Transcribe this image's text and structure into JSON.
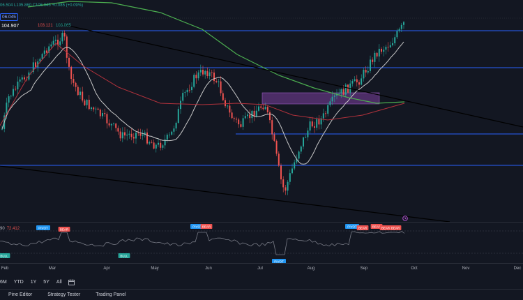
{
  "header": {
    "ohlc_text": "06.504 L105.860 C106.045 +0.085 (+0.09%)"
  },
  "price_tags": {
    "blue": "06.045",
    "white": "104.907",
    "red": "103.121",
    "green": "103.065"
  },
  "oscillator": {
    "length_label": "90",
    "value": "72.412",
    "markers": [
      {
        "text": "PIVOT",
        "color": "#2196f3"
      },
      {
        "text": "BEAR",
        "color": "#ef5350"
      },
      {
        "text": "PIVOT",
        "color": "#2196f3"
      },
      {
        "text": "BEAR",
        "color": "#ef5350"
      },
      {
        "text": "BULL",
        "color": "#26a69a"
      },
      {
        "text": "BULL",
        "color": "#26a69a"
      },
      {
        "text": "PIVOT",
        "color": "#2196f3"
      },
      {
        "text": "PIVOT",
        "color": "#2196f3"
      },
      {
        "text": "BEAR",
        "color": "#ef5350"
      },
      {
        "text": "BEAR",
        "color": "#ef5350"
      },
      {
        "text": "BEAR",
        "color": "#ef5350"
      },
      {
        "text": "BEAR",
        "color": "#ef5350"
      }
    ]
  },
  "x_axis": {
    "labels": [
      "Feb",
      "Mar",
      "Apr",
      "May",
      "Jun",
      "Jul",
      "Aug",
      "Sep",
      "Oct",
      "Nov",
      "Dec"
    ]
  },
  "timeframes": [
    "6M",
    "YTD",
    "1Y",
    "5Y",
    "All"
  ],
  "bottom_tabs": [
    "Pine Editor",
    "Strategy Tester",
    "Trading Panel"
  ],
  "colors": {
    "background": "#131722",
    "up": "#26a69a",
    "down": "#ef5350",
    "level_line": "#2962ff",
    "sma_fast": "#c8c8c8",
    "sma_mid": "#b2323c",
    "sma_slow": "#4caf50",
    "supply_zone": "#7b3f9e"
  },
  "icons": {
    "range": "calendar-range-icon",
    "alert": "alert-clock-icon"
  }
}
